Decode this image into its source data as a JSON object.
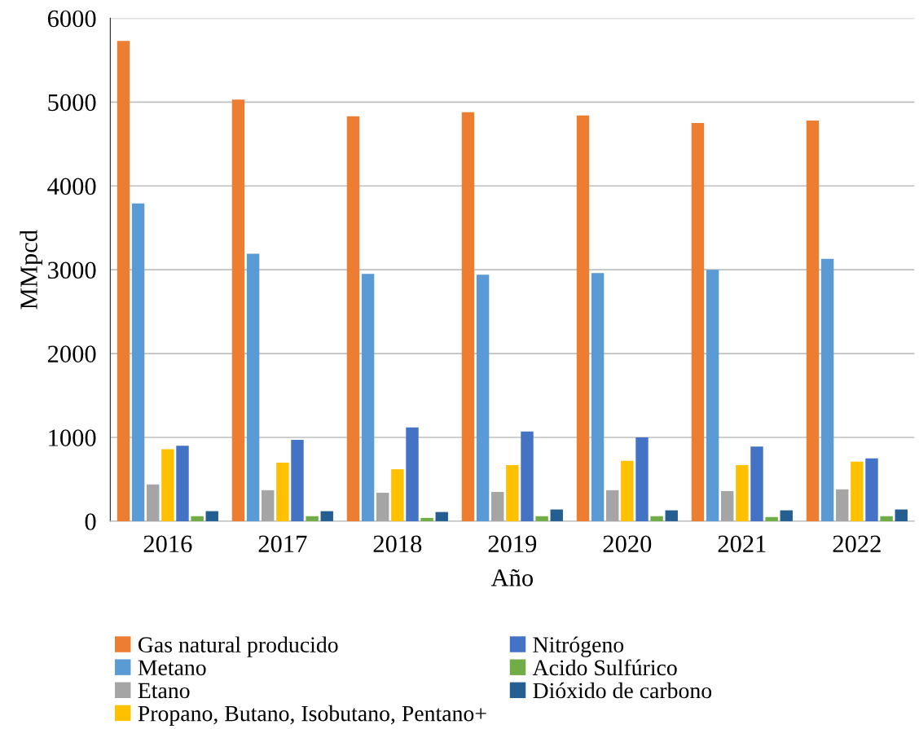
{
  "chart_data": {
    "type": "bar",
    "xlabel": "Año",
    "ylabel": "MMpcd",
    "categories": [
      "2016",
      "2017",
      "2018",
      "2019",
      "2020",
      "2021",
      "2022"
    ],
    "series": [
      {
        "name": "Gas natural producido",
        "color": "#ed7d31",
        "values": [
          5730,
          5030,
          4830,
          4880,
          4840,
          4750,
          4780
        ]
      },
      {
        "name": "Metano",
        "color": "#5b9bd5",
        "values": [
          3790,
          3190,
          2950,
          2940,
          2960,
          3000,
          3130
        ]
      },
      {
        "name": "Etano",
        "color": "#a5a5a5",
        "values": [
          440,
          370,
          340,
          350,
          370,
          360,
          380
        ]
      },
      {
        "name": "Propano, Butano, Isobutano, Pentano+",
        "color": "#ffc000",
        "values": [
          860,
          700,
          620,
          670,
          720,
          670,
          710
        ]
      },
      {
        "name": "Nitrógeno",
        "color": "#4472c4",
        "values": [
          900,
          970,
          1120,
          1070,
          1000,
          890,
          750
        ]
      },
      {
        "name": "Acido Sulfúrico",
        "color": "#70ad47",
        "values": [
          60,
          60,
          40,
          60,
          60,
          50,
          60
        ]
      },
      {
        "name": "Dióxido de carbono",
        "color": "#255e91",
        "values": [
          120,
          120,
          110,
          140,
          130,
          130,
          140
        ]
      }
    ],
    "ylim": [
      0,
      6000
    ],
    "yticks": [
      0,
      1000,
      2000,
      3000,
      4000,
      5000,
      6000
    ],
    "grid": "y",
    "legend": "bottom"
  }
}
